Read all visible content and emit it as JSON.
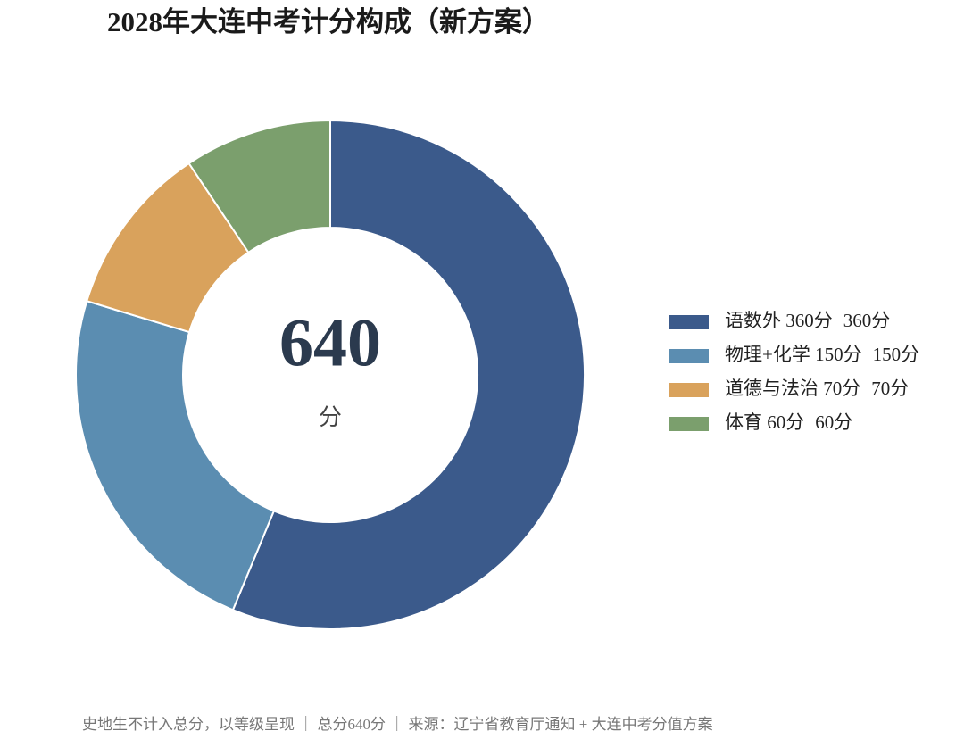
{
  "chart_data": {
    "type": "donut",
    "title": "2028年大连中考计分构成（新方案）",
    "categories": [
      "语数外 360分",
      "物理+化学 150分",
      "道德与法治 70分",
      "体育 60分"
    ],
    "values": [
      360,
      150,
      70,
      60
    ],
    "value_labels": [
      "360分",
      "150分",
      "70分",
      "60分"
    ],
    "colors": [
      "#3b5a8b",
      "#5b8db1",
      "#d9a25c",
      "#7b9f6d"
    ],
    "center_value": "640",
    "center_unit": "分",
    "legend": "right",
    "footnote": "史地生不计入总分，以等级呈现 ｜ 总分640分 ｜ 来源：辽宁省教育厅通知 + 大连中考分值方案"
  }
}
